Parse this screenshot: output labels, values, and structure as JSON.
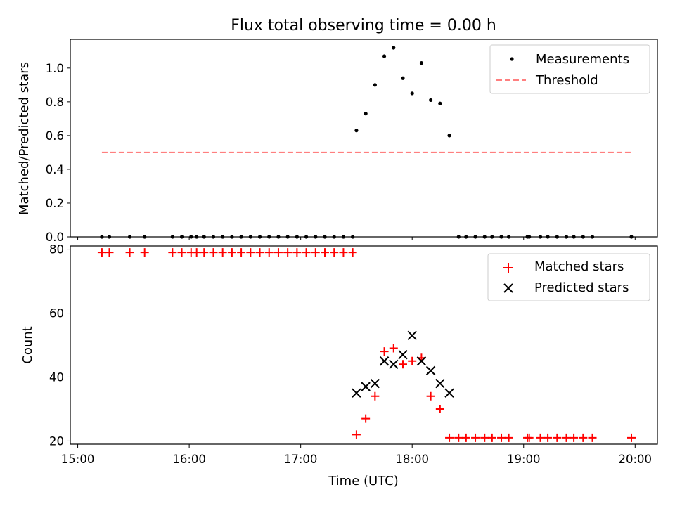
{
  "figure": {
    "title": "Flux total observing time = 0.00 h"
  },
  "chart_data": [
    {
      "type": "scatter",
      "ylabel": "Matched/Predicted stars",
      "xlim": [
        "14:56",
        "20:12"
      ],
      "ylim": [
        0,
        1.17
      ],
      "yticks": [
        "0.0",
        "0.2",
        "0.4",
        "0.6",
        "0.8",
        "1.0"
      ],
      "ytick_values": [
        0,
        0.2,
        0.4,
        0.6,
        0.8,
        1.0
      ],
      "grid": false,
      "legend_position": "top-right",
      "series": [
        {
          "name": "Measurements",
          "marker": "dot",
          "color": "#000000",
          "x": [
            "15:13",
            "15:17",
            "15:28",
            "15:36",
            "15:51",
            "15:56",
            "16:01",
            "16:04",
            "16:08",
            "16:13",
            "16:18",
            "16:23",
            "16:28",
            "16:33",
            "16:38",
            "16:43",
            "16:48",
            "16:53",
            "16:58",
            "17:03",
            "17:08",
            "17:13",
            "17:18",
            "17:23",
            "17:28",
            "17:30",
            "17:35",
            "17:40",
            "17:45",
            "17:50",
            "17:55",
            "18:00",
            "18:05",
            "18:10",
            "18:15",
            "18:20",
            "18:25",
            "18:29",
            "18:34",
            "18:39",
            "18:43",
            "18:48",
            "18:52",
            "19:02",
            "19:03",
            "19:09",
            "19:13",
            "19:18",
            "19:23",
            "19:27",
            "19:32",
            "19:37",
            "19:58"
          ],
          "y": [
            0,
            0,
            0,
            0,
            0,
            0,
            0,
            0,
            0,
            0,
            0,
            0,
            0,
            0,
            0,
            0,
            0,
            0,
            0,
            0,
            0,
            0,
            0,
            0,
            0,
            0.63,
            0.73,
            0.9,
            1.07,
            1.12,
            0.94,
            0.85,
            1.03,
            0.81,
            0.79,
            0.6,
            0,
            0,
            0,
            0,
            0,
            0,
            0,
            0,
            0,
            0,
            0,
            0,
            0,
            0,
            0,
            0,
            0
          ]
        },
        {
          "name": "Threshold",
          "type": "line",
          "style": "dashed",
          "color": "#ff7f7f",
          "x": [
            "15:13",
            "19:58"
          ],
          "y": [
            0.5,
            0.5
          ]
        }
      ]
    },
    {
      "type": "scatter",
      "xlabel": "Time (UTC)",
      "ylabel": "Count",
      "xlim": [
        "14:56",
        "20:12"
      ],
      "ylim": [
        19,
        81
      ],
      "xticks": [
        "15:00",
        "16:00",
        "17:00",
        "18:00",
        "19:00",
        "20:00"
      ],
      "yticks": [
        "20",
        "40",
        "60",
        "80"
      ],
      "ytick_values": [
        20,
        40,
        60,
        80
      ],
      "grid": false,
      "legend_position": "top-right",
      "series": [
        {
          "name": "Matched stars",
          "marker": "plus",
          "color": "#ff0000",
          "x": [
            "15:13",
            "15:17",
            "15:28",
            "15:36",
            "15:51",
            "15:56",
            "16:01",
            "16:04",
            "16:08",
            "16:13",
            "16:18",
            "16:23",
            "16:28",
            "16:33",
            "16:38",
            "16:43",
            "16:48",
            "16:53",
            "16:58",
            "17:03",
            "17:08",
            "17:13",
            "17:18",
            "17:23",
            "17:28",
            "17:30",
            "17:35",
            "17:40",
            "17:45",
            "17:50",
            "17:55",
            "18:00",
            "18:05",
            "18:10",
            "18:15",
            "18:20",
            "18:25",
            "18:29",
            "18:34",
            "18:39",
            "18:43",
            "18:48",
            "18:52",
            "19:02",
            "19:03",
            "19:09",
            "19:13",
            "19:18",
            "19:23",
            "19:27",
            "19:32",
            "19:37",
            "19:58"
          ],
          "y": [
            79,
            79,
            79,
            79,
            79,
            79,
            79,
            79,
            79,
            79,
            79,
            79,
            79,
            79,
            79,
            79,
            79,
            79,
            79,
            79,
            79,
            79,
            79,
            79,
            79,
            22,
            27,
            34,
            48,
            49,
            44,
            45,
            46,
            34,
            30,
            21,
            21,
            21,
            21,
            21,
            21,
            21,
            21,
            21,
            21,
            21,
            21,
            21,
            21,
            21,
            21,
            21,
            21
          ]
        },
        {
          "name": "Predicted stars",
          "marker": "x",
          "color": "#000000",
          "x": [
            "17:30",
            "17:35",
            "17:40",
            "17:45",
            "17:50",
            "17:55",
            "18:00",
            "18:05",
            "18:10",
            "18:15",
            "18:20"
          ],
          "y": [
            35,
            37,
            38,
            45,
            44,
            47,
            53,
            45,
            42,
            38,
            35
          ]
        }
      ]
    }
  ]
}
